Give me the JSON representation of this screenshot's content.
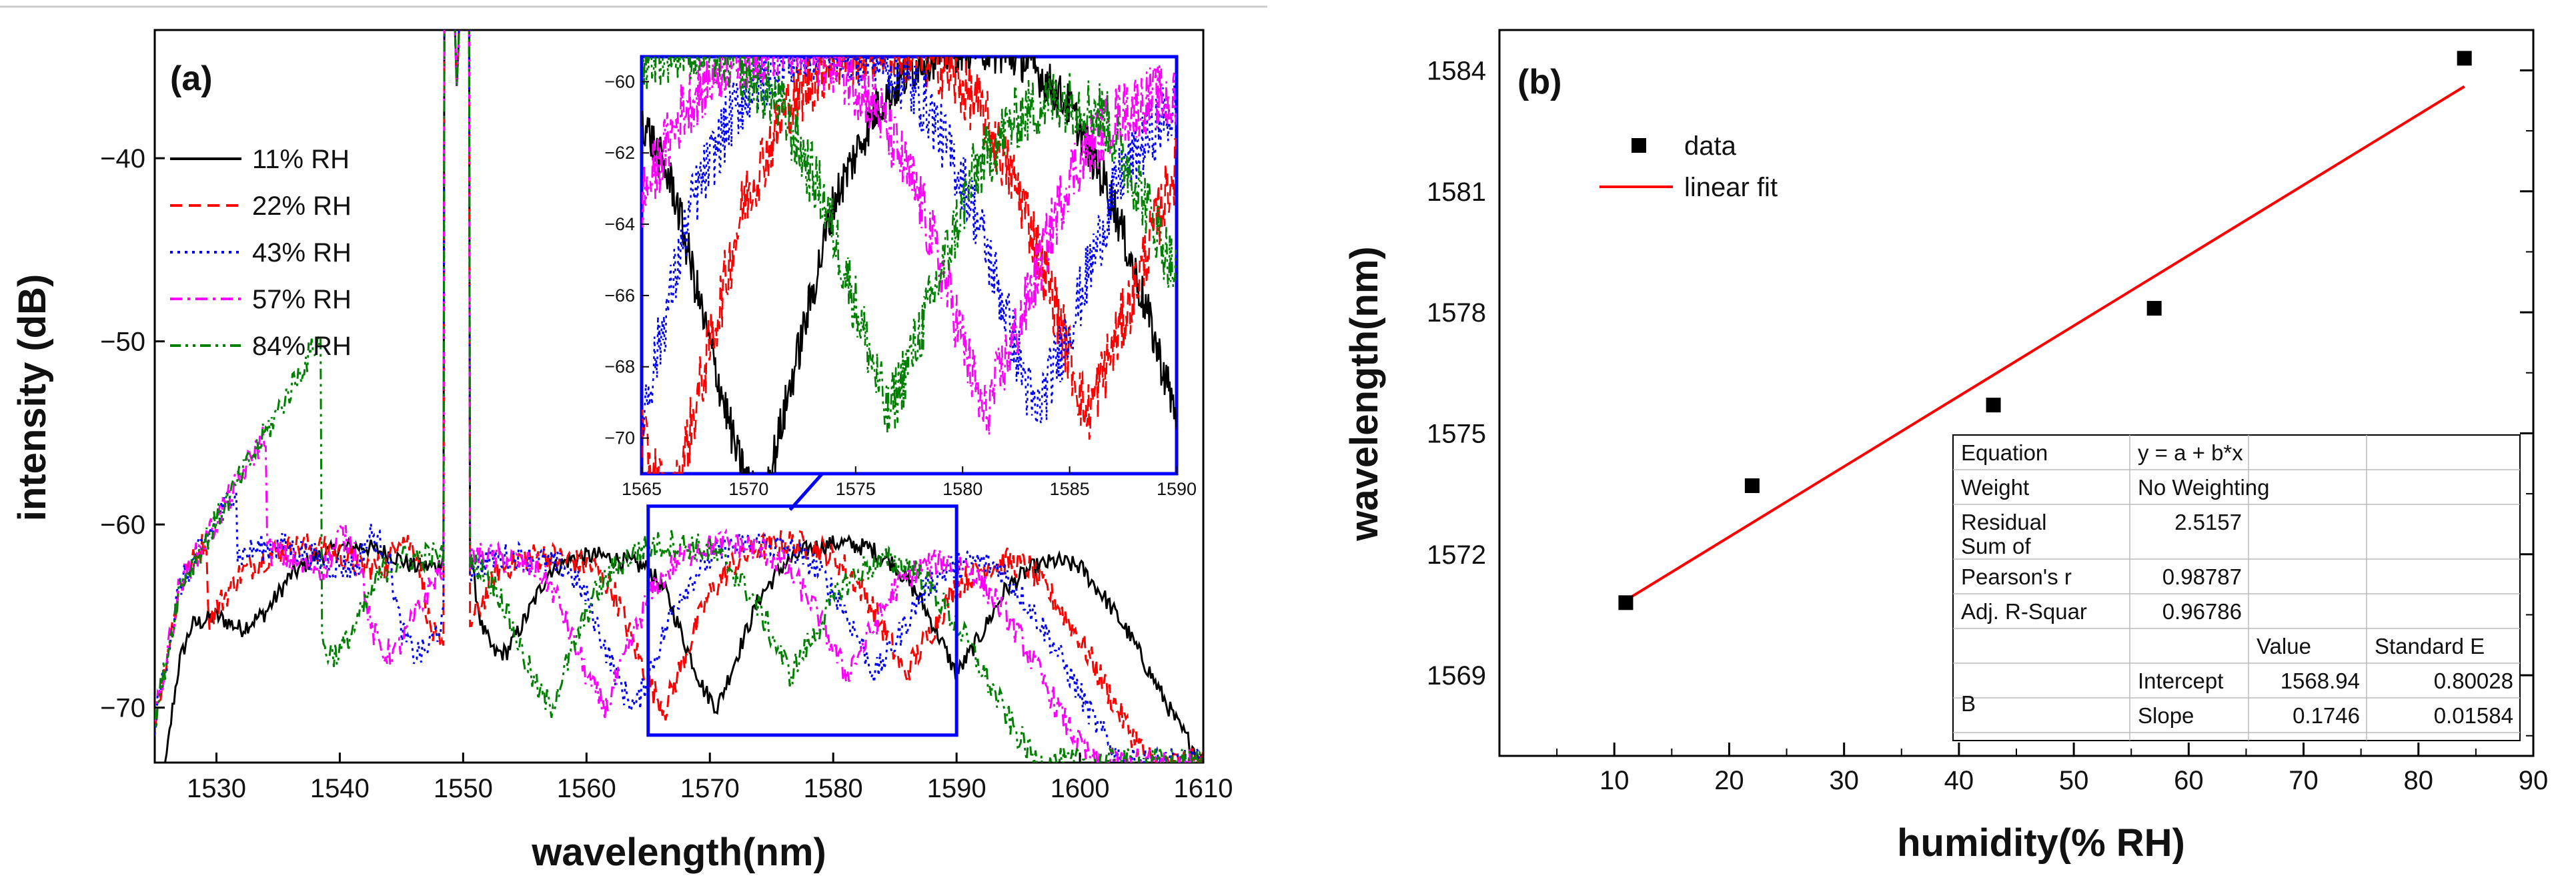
{
  "chart_data": [
    {
      "panel": "(a)",
      "type": "line",
      "xlabel": "wavelength(nm)",
      "ylabel": "intensity (dB)",
      "xlim": [
        1525,
        1610
      ],
      "ylim": [
        -73,
        -33
      ],
      "xticks": [
        1530,
        1540,
        1550,
        1560,
        1570,
        1580,
        1590,
        1600,
        1610
      ],
      "yticks": [
        -70,
        -60,
        -50,
        -40
      ],
      "legend_position": "top-left",
      "peak": {
        "x": 1549.5,
        "y": -36.5
      },
      "series": [
        {
          "name": "11% RH",
          "color": "#000000",
          "dash": "solid",
          "shift": 0
        },
        {
          "name": "22% RH",
          "color": "#ff0000",
          "dash": "dashed",
          "shift": -4.2
        },
        {
          "name": "43% RH",
          "color": "#0000ff",
          "dash": "dotted",
          "shift": -6.6
        },
        {
          "name": "57% RH",
          "color": "#ff00ff",
          "dash": "dash-dot",
          "shift": -9.0
        },
        {
          "name": "84% RH",
          "color": "#008000",
          "dash": "dash-dot-dot",
          "shift": -13.5
        }
      ],
      "highlight_box": {
        "x": [
          1565,
          1590
        ],
        "y": [
          -71.5,
          -59
        ]
      },
      "inset": {
        "xlim": [
          1565,
          1590
        ],
        "ylim": [
          -71,
          -59.3
        ],
        "xticks": [
          1565,
          1570,
          1575,
          1580,
          1585,
          1590
        ],
        "yticks": [
          -70,
          -68,
          -66,
          -64,
          -62,
          -60
        ]
      }
    },
    {
      "panel": "(b)",
      "type": "scatter",
      "xlabel": "humidity(% RH)",
      "ylabel": "wavelength(nm)",
      "xlim": [
        0,
        90
      ],
      "ylim": [
        1567,
        1585
      ],
      "xticks": [
        10,
        20,
        30,
        40,
        50,
        60,
        70,
        80,
        90
      ],
      "yticks": [
        1569,
        1572,
        1575,
        1578,
        1581,
        1584
      ],
      "legend_position": "top-left",
      "series": [
        {
          "name": "data",
          "color": "#000000",
          "x": [
            11,
            22,
            43,
            57,
            84
          ],
          "y": [
            1570.8,
            1573.7,
            1575.7,
            1578.1,
            1584.3
          ]
        },
        {
          "name": "linear fit",
          "color": "#ff0000",
          "x": [
            11,
            84
          ],
          "y": [
            1570.86,
            1583.6
          ]
        }
      ],
      "fit_table": {
        "rows": [
          [
            "Equation",
            "y = a + b*x",
            "",
            ""
          ],
          [
            "Weight",
            "No Weighting",
            "",
            ""
          ],
          [
            "Residual\nSum of",
            "2.5157",
            "",
            ""
          ],
          [
            "Pearson's r",
            "0.98787",
            "",
            ""
          ],
          [
            "Adj. R-Squar",
            "0.96786",
            "",
            ""
          ],
          [
            "",
            "",
            "Value",
            "Standard E"
          ],
          [
            "B",
            "Intercept",
            "1568.94",
            "0.80028"
          ],
          [
            "",
            "Slope",
            "0.1746",
            "0.01584"
          ]
        ]
      }
    }
  ]
}
